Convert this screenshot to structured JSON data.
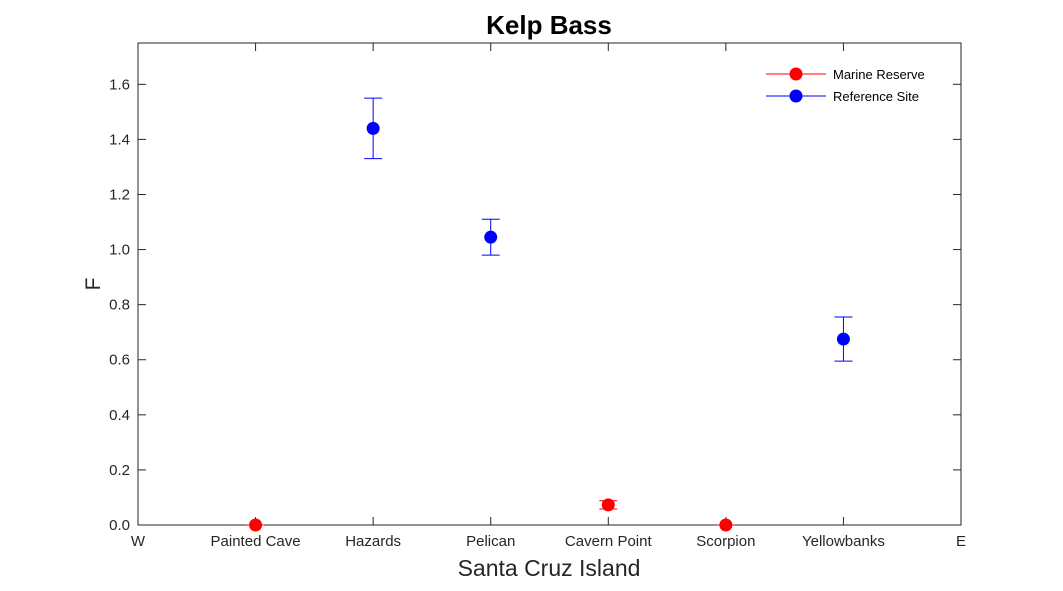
{
  "chart_data": {
    "type": "scatter",
    "title": "Kelp Bass",
    "xlabel": "Santa Cruz Island",
    "ylabel": "F",
    "categories": [
      "W",
      "Painted Cave",
      "Hazards",
      "Pelican",
      "Cavern Point",
      "Scorpion",
      "Yellowbanks",
      "E"
    ],
    "ylim": [
      0,
      1.75
    ],
    "yticks": [
      "0.0",
      "0.2",
      "0.4",
      "0.6",
      "0.8",
      "1.0",
      "1.2",
      "1.4",
      "1.6"
    ],
    "grid": false,
    "legend_position": "top-right",
    "series": [
      {
        "name": "Marine Reserve",
        "color": "#ff0000",
        "points": [
          {
            "category": "Painted Cave",
            "y": 0.0,
            "err": 0.0
          },
          {
            "category": "Cavern Point",
            "y": 0.073,
            "err": 0.015
          },
          {
            "category": "Scorpion",
            "y": 0.0,
            "err": 0.0
          }
        ]
      },
      {
        "name": "Reference Site",
        "color": "#0000ff",
        "points": [
          {
            "category": "Hazards",
            "y": 1.44,
            "err": 0.11
          },
          {
            "category": "Pelican",
            "y": 1.045,
            "err": 0.065
          },
          {
            "category": "Yellowbanks",
            "y": 0.675,
            "err": 0.08
          }
        ]
      }
    ]
  }
}
